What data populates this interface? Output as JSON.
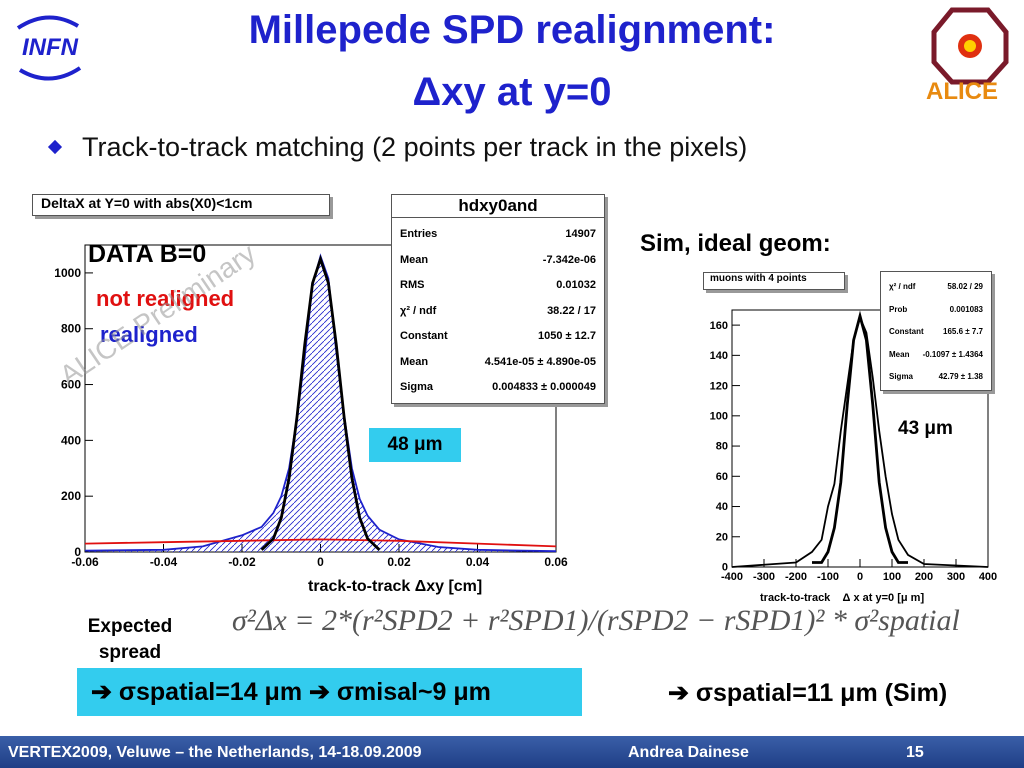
{
  "slide": {
    "title_line1": "Millepede SPD realignment:",
    "title_line2": "Δxy at y=0",
    "bullet": "Track-to-track matching (2 points per track in the pixels)",
    "logo_left": "INFN",
    "logo_right": "ALICE"
  },
  "left_plot": {
    "hist_title": "DeltaX at Y=0  with abs(X0)<1cm",
    "label_data": "DATA B=0",
    "label_not_realigned": "not realigned",
    "label_realigned": "realigned",
    "watermark": "ALICE Preliminary",
    "sigma_label": "48 μm",
    "xlabel": "track-to-track Δxy [cm]",
    "stats": {
      "title": "hdxy0and",
      "rows": [
        {
          "k": "Entries",
          "v": "14907"
        },
        {
          "k": "Mean",
          "v": "-7.342e-06"
        },
        {
          "k": "RMS",
          "v": "0.01032"
        },
        {
          "k": "χ² / ndf",
          "v": "38.22 / 17"
        },
        {
          "k": "Constant",
          "v": "1050 ± 12.7"
        },
        {
          "k": "Mean",
          "v": "4.541e-05 ± 4.890e-05"
        },
        {
          "k": "Sigma",
          "v": "0.004833 ± 0.000049"
        }
      ]
    }
  },
  "right_plot": {
    "heading": "Sim, ideal geom:",
    "hist_title": "muons with 4 points",
    "sigma_label": "43 μm",
    "xlabel": "track-to-track    Δ x at y=0 [μ m]",
    "stats": {
      "rows": [
        {
          "k": "χ² / ndf",
          "v": "58.02 / 29"
        },
        {
          "k": "Prob",
          "v": "0.001083"
        },
        {
          "k": "Constant",
          "v": "165.6 ± 7.7"
        },
        {
          "k": "Mean",
          "v": "-0.1097 ± 1.4364"
        },
        {
          "k": "Sigma",
          "v": "42.79 ± 1.38"
        }
      ]
    }
  },
  "expected_spread": {
    "label_line1": "Expected",
    "label_line2": "spread",
    "formula": "σ²Δx = 2*(r²SPD2 + r²SPD1)/(rSPD2 − rSPD1)² * σ²spatial"
  },
  "result_box": {
    "text": "➔ σspatial=14 μm ➔ σmisal~9 μm"
  },
  "result_sim": {
    "text": "➔ σspatial=11 μm (Sim)"
  },
  "footer": {
    "conference": "VERTEX2009, Veluwe – the Netherlands, 14-18.09.2009",
    "author": "Andrea Dainese",
    "page": "15"
  },
  "colors": {
    "title": "#1e22cc",
    "realigned": "#1e22cc",
    "not_realigned": "#e01010",
    "highlight": "#33ccee"
  },
  "chart_data": [
    {
      "type": "line",
      "title": "DeltaX at Y=0  with abs(X0)<1cm",
      "xlabel": "track-to-track Δxy [cm]",
      "ylabel": "",
      "xlim": [
        -0.06,
        0.06
      ],
      "ylim": [
        0,
        1100
      ],
      "x_ticks": [
        "-0.06",
        "-0.04",
        "-0.02",
        "0",
        "0.02",
        "0.04",
        "0.06"
      ],
      "y_ticks": [
        "0",
        "200",
        "400",
        "600",
        "800",
        "1000"
      ],
      "series": [
        {
          "name": "realigned",
          "color": "#1e22cc",
          "x": [
            -0.06,
            -0.04,
            -0.03,
            -0.02,
            -0.015,
            -0.012,
            -0.01,
            -0.008,
            -0.006,
            -0.004,
            -0.002,
            0,
            0.002,
            0.004,
            0.006,
            0.008,
            0.01,
            0.012,
            0.015,
            0.02,
            0.03,
            0.04,
            0.06
          ],
          "y": [
            5,
            8,
            20,
            60,
            90,
            140,
            200,
            300,
            480,
            700,
            960,
            1060,
            980,
            720,
            490,
            300,
            190,
            130,
            80,
            45,
            18,
            8,
            3
          ]
        },
        {
          "name": "not realigned",
          "color": "#e01010",
          "x": [
            -0.06,
            -0.04,
            -0.02,
            0,
            0.02,
            0.04,
            0.06
          ],
          "y": [
            30,
            35,
            40,
            45,
            40,
            30,
            20
          ]
        },
        {
          "name": "fit",
          "color": "#000000",
          "x": [
            -0.015,
            -0.012,
            -0.01,
            -0.008,
            -0.006,
            -0.004,
            -0.002,
            0,
            0.002,
            0.004,
            0.006,
            0.008,
            0.01,
            0.012,
            0.015
          ],
          "y": [
            8,
            48,
            123,
            265,
            484,
            745,
            964,
            1050,
            964,
            745,
            484,
            265,
            123,
            48,
            8
          ]
        }
      ]
    },
    {
      "type": "line",
      "title": "muons with 4 points",
      "xlabel": "track-to-track    Δ x at y=0 [μ m]",
      "ylabel": "",
      "xlim": [
        -400,
        400
      ],
      "ylim": [
        0,
        170
      ],
      "x_ticks": [
        "-400",
        "-300",
        "-200",
        "-100",
        "0",
        "100",
        "200",
        "300",
        "400"
      ],
      "y_ticks": [
        "0",
        "20",
        "40",
        "60",
        "80",
        "100",
        "120",
        "140",
        "160"
      ],
      "series": [
        {
          "name": "sim",
          "color": "#000000",
          "x": [
            -400,
            -200,
            -150,
            -120,
            -100,
            -80,
            -60,
            -40,
            -20,
            0,
            20,
            40,
            60,
            80,
            100,
            120,
            150,
            200,
            400
          ],
          "y": [
            0,
            3,
            10,
            18,
            40,
            55,
            90,
            120,
            150,
            165,
            155,
            125,
            90,
            60,
            35,
            18,
            8,
            2,
            0
          ]
        },
        {
          "name": "fit",
          "color": "#000000",
          "x": [
            -150,
            -120,
            -100,
            -80,
            -60,
            -40,
            -20,
            0,
            20,
            40,
            60,
            80,
            100,
            120,
            150
          ],
          "y": [
            3,
            3,
            10,
            26,
            56,
            107,
            150,
            166,
            150,
            107,
            56,
            26,
            10,
            3,
            3
          ]
        }
      ]
    }
  ]
}
